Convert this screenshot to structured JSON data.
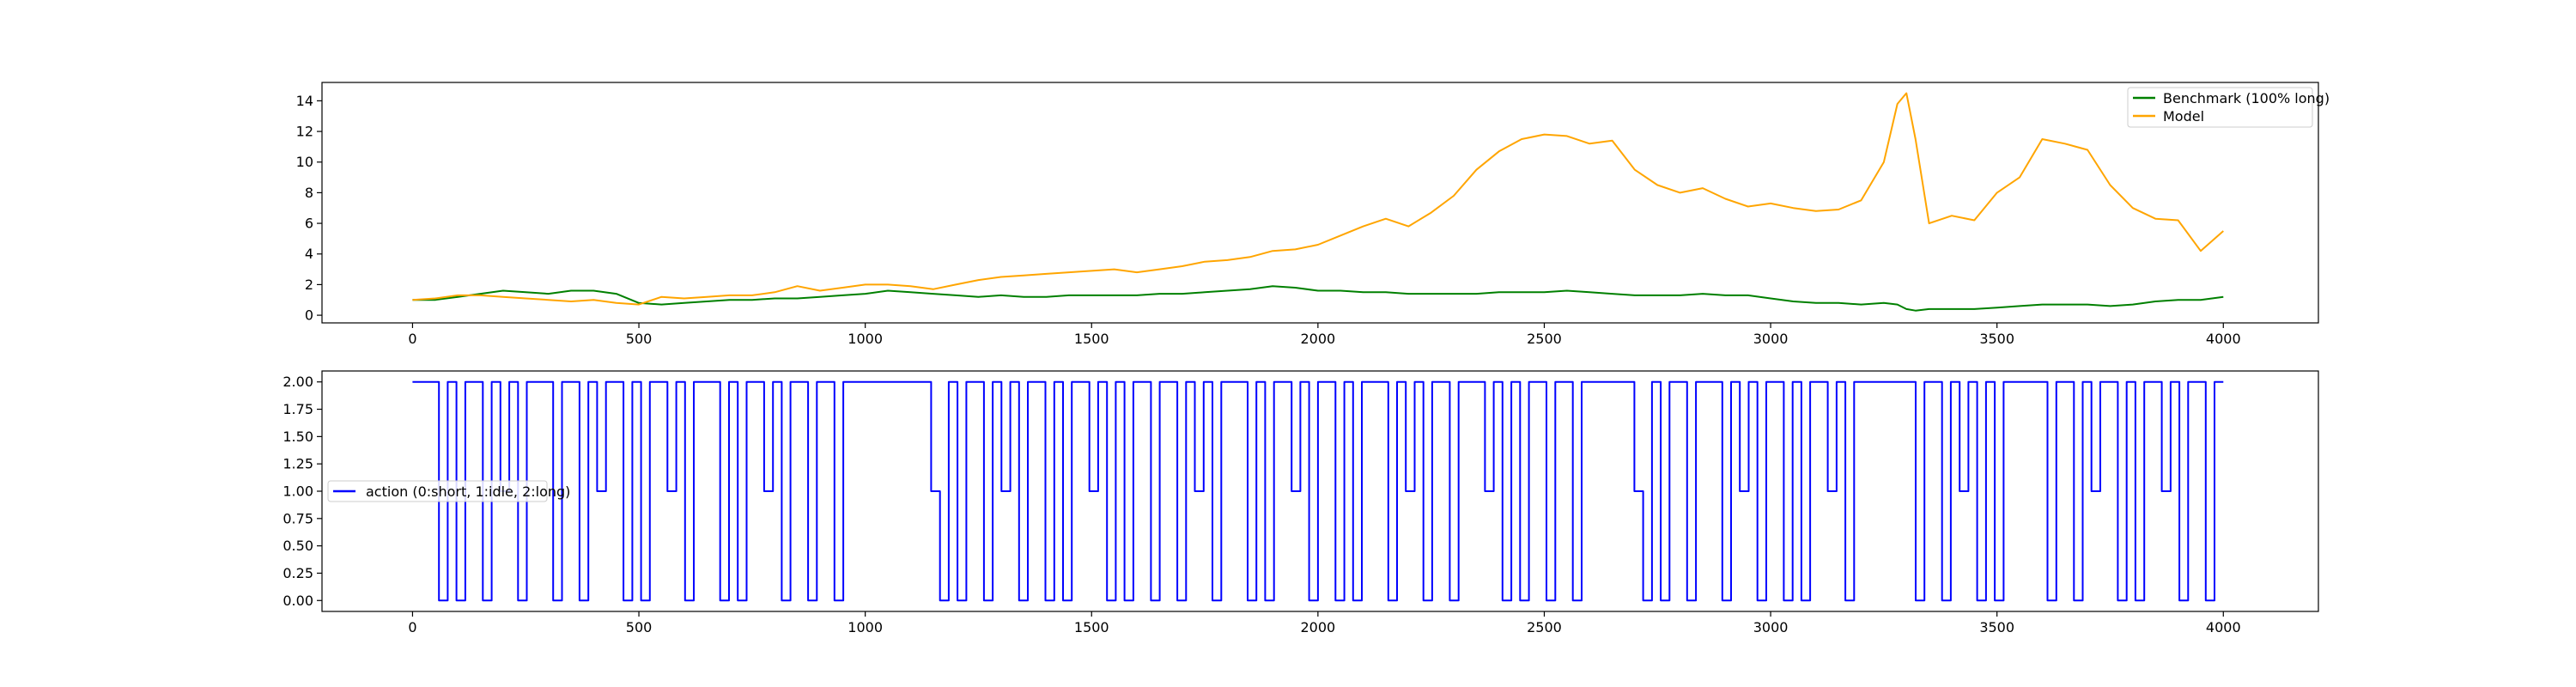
{
  "chart_data": [
    {
      "type": "line",
      "title": "",
      "xlabel": "",
      "ylabel": "",
      "xlim": [
        -200,
        4210
      ],
      "ylim": [
        -0.5,
        15.2
      ],
      "xticks": [
        0,
        500,
        1000,
        1500,
        2000,
        2500,
        3000,
        3500,
        4000
      ],
      "yticks": [
        0,
        2,
        4,
        6,
        8,
        10,
        12,
        14
      ],
      "grid": false,
      "legend_position": "upper right",
      "x": [
        0,
        50,
        100,
        150,
        200,
        250,
        300,
        350,
        400,
        450,
        500,
        550,
        600,
        650,
        700,
        750,
        800,
        850,
        900,
        950,
        1000,
        1050,
        1100,
        1150,
        1200,
        1250,
        1300,
        1350,
        1400,
        1450,
        1500,
        1550,
        1600,
        1650,
        1700,
        1750,
        1800,
        1850,
        1900,
        1950,
        2000,
        2050,
        2100,
        2150,
        2200,
        2250,
        2300,
        2350,
        2400,
        2450,
        2500,
        2550,
        2600,
        2650,
        2700,
        2750,
        2800,
        2850,
        2900,
        2950,
        3000,
        3050,
        3100,
        3150,
        3200,
        3250,
        3280,
        3300,
        3320,
        3350,
        3400,
        3450,
        3500,
        3550,
        3600,
        3650,
        3700,
        3750,
        3800,
        3850,
        3900,
        3950,
        4000
      ],
      "series": [
        {
          "name": "Benchmark (100% long)",
          "color": "#008000",
          "values": [
            1.0,
            1.0,
            1.2,
            1.4,
            1.6,
            1.5,
            1.4,
            1.6,
            1.6,
            1.4,
            0.8,
            0.7,
            0.8,
            0.9,
            1.0,
            1.0,
            1.1,
            1.1,
            1.2,
            1.3,
            1.4,
            1.6,
            1.5,
            1.4,
            1.3,
            1.2,
            1.3,
            1.2,
            1.2,
            1.3,
            1.3,
            1.3,
            1.3,
            1.4,
            1.4,
            1.5,
            1.6,
            1.7,
            1.9,
            1.8,
            1.6,
            1.6,
            1.5,
            1.5,
            1.4,
            1.4,
            1.4,
            1.4,
            1.5,
            1.5,
            1.5,
            1.6,
            1.5,
            1.4,
            1.3,
            1.3,
            1.3,
            1.4,
            1.3,
            1.3,
            1.1,
            0.9,
            0.8,
            0.8,
            0.7,
            0.8,
            0.7,
            0.4,
            0.3,
            0.4,
            0.4,
            0.4,
            0.5,
            0.6,
            0.7,
            0.7,
            0.7,
            0.6,
            0.7,
            0.9,
            1.0,
            1.0,
            1.2
          ]
        },
        {
          "name": "Model",
          "color": "#ffa500",
          "values": [
            1.0,
            1.1,
            1.3,
            1.3,
            1.2,
            1.1,
            1.0,
            0.9,
            1.0,
            0.8,
            0.7,
            1.2,
            1.1,
            1.2,
            1.3,
            1.3,
            1.5,
            1.9,
            1.6,
            1.8,
            2.0,
            2.0,
            1.9,
            1.7,
            2.0,
            2.3,
            2.5,
            2.6,
            2.7,
            2.8,
            2.9,
            3.0,
            2.8,
            3.0,
            3.2,
            3.5,
            3.6,
            3.8,
            4.2,
            4.3,
            4.6,
            5.2,
            5.8,
            6.3,
            5.8,
            6.7,
            7.8,
            9.5,
            10.7,
            11.5,
            11.8,
            11.7,
            11.2,
            11.4,
            9.5,
            8.5,
            8.0,
            8.3,
            7.6,
            7.1,
            7.3,
            7.0,
            6.8,
            6.9,
            7.5,
            10.0,
            13.8,
            14.5,
            11.5,
            6.0,
            6.5,
            6.2,
            8.0,
            9.0,
            11.5,
            11.2,
            10.8,
            8.5,
            7.0,
            6.3,
            6.2,
            4.2,
            5.5
          ]
        }
      ]
    },
    {
      "type": "line",
      "drawstyle": "steps",
      "title": "",
      "xlabel": "",
      "ylabel": "",
      "xlim": [
        -200,
        4210
      ],
      "ylim": [
        -0.1,
        2.1
      ],
      "xticks": [
        0,
        500,
        1000,
        1500,
        2000,
        2500,
        3000,
        3500,
        4000
      ],
      "yticks": [
        "0.00",
        "0.25",
        "0.50",
        "0.75",
        "1.00",
        "1.25",
        "1.50",
        "1.75",
        "2.00"
      ],
      "grid": false,
      "legend_position": "center left",
      "series": [
        {
          "name": "action (0:short, 1:idle, 2:long)",
          "color": "#0000ff",
          "values": [
            2,
            2,
            2,
            0,
            2,
            0,
            2,
            2,
            0,
            2,
            1,
            2,
            0,
            2,
            2,
            2,
            0,
            2,
            2,
            0,
            2,
            1,
            2,
            2,
            0,
            2,
            0,
            2,
            2,
            1,
            2,
            0,
            2,
            2,
            2,
            0,
            2,
            0,
            2,
            2,
            1,
            2,
            0,
            2,
            2,
            0,
            2,
            2,
            0,
            2,
            2,
            2,
            2,
            2,
            2,
            2,
            2,
            2,
            2,
            1,
            0,
            2,
            0,
            2,
            2,
            0,
            2,
            1,
            2,
            0,
            2,
            2,
            0,
            2,
            0,
            2,
            2,
            1,
            2,
            0,
            2,
            0,
            2,
            2,
            0,
            2,
            2,
            0,
            2,
            1,
            2,
            0,
            2,
            2,
            2,
            0,
            2,
            0,
            2,
            2,
            1,
            2,
            0,
            2,
            2,
            0,
            2,
            0,
            2,
            2,
            2,
            0,
            2,
            1,
            2,
            0,
            2,
            2,
            0,
            2,
            2,
            2,
            1,
            2,
            0,
            2,
            0,
            2,
            2,
            0,
            2,
            2,
            0,
            2,
            2,
            2,
            2,
            2,
            2,
            1,
            0,
            2,
            0,
            2,
            2,
            0,
            2,
            2,
            2,
            0,
            2,
            1,
            2,
            0,
            2,
            2,
            0,
            2,
            0,
            2,
            2,
            1,
            2,
            0,
            2,
            2,
            2,
            2,
            2,
            2,
            2,
            0,
            2,
            2,
            0,
            2,
            1,
            2,
            0,
            2,
            0,
            2,
            2,
            2,
            2,
            2,
            0,
            2,
            2,
            0,
            2,
            1,
            2,
            2,
            0,
            2,
            0,
            2,
            2,
            1,
            2,
            0,
            2,
            2,
            0,
            2,
            2
          ]
        }
      ]
    }
  ]
}
